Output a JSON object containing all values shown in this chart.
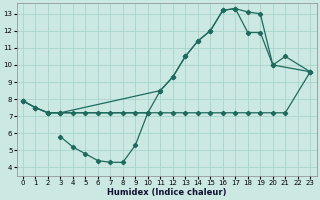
{
  "xlabel": "Humidex (Indice chaleur)",
  "background_color": "#cce8e3",
  "grid_color": "#a8d5cc",
  "line_color": "#1e6b5e",
  "xlim": [
    -0.5,
    23.5
  ],
  "ylim": [
    3.5,
    13.6
  ],
  "xticks": [
    0,
    1,
    2,
    3,
    4,
    5,
    6,
    7,
    8,
    9,
    10,
    11,
    12,
    13,
    14,
    15,
    16,
    17,
    18,
    19,
    20,
    21,
    22,
    23
  ],
  "yticks": [
    4,
    5,
    6,
    7,
    8,
    9,
    10,
    11,
    12,
    13
  ],
  "line1_x": [
    0,
    1,
    2,
    3,
    11,
    12,
    13,
    14,
    15,
    16,
    17,
    18,
    19,
    20,
    23
  ],
  "line1_y": [
    7.9,
    7.5,
    7.2,
    7.2,
    8.5,
    9.3,
    10.5,
    11.4,
    12.0,
    13.2,
    13.3,
    13.1,
    13.0,
    10.0,
    9.6
  ],
  "line2_x": [
    0,
    1,
    2,
    3,
    10,
    11,
    12,
    13,
    14,
    15,
    16,
    17,
    18,
    19,
    20,
    21,
    23
  ],
  "line2_y": [
    7.9,
    7.5,
    7.2,
    7.2,
    7.2,
    8.5,
    9.3,
    10.5,
    11.4,
    12.0,
    13.2,
    13.3,
    11.9,
    11.9,
    10.0,
    10.5,
    9.6
  ],
  "line3_x": [
    0,
    1,
    2,
    3,
    4,
    5,
    6,
    7,
    8,
    9,
    10,
    11,
    12,
    13,
    14,
    15,
    16,
    17,
    18,
    19,
    20,
    21,
    23
  ],
  "line3_y": [
    7.9,
    7.5,
    7.2,
    7.2,
    7.2,
    7.2,
    7.2,
    7.2,
    7.2,
    7.2,
    7.2,
    7.2,
    7.2,
    7.2,
    7.2,
    7.2,
    7.2,
    7.2,
    7.2,
    7.2,
    7.2,
    7.2,
    9.6
  ],
  "line4_x": [
    3,
    4,
    5,
    6,
    7,
    8,
    9,
    10
  ],
  "line4_y": [
    5.8,
    5.2,
    4.8,
    4.4,
    4.3,
    4.3,
    5.3,
    7.2
  ]
}
